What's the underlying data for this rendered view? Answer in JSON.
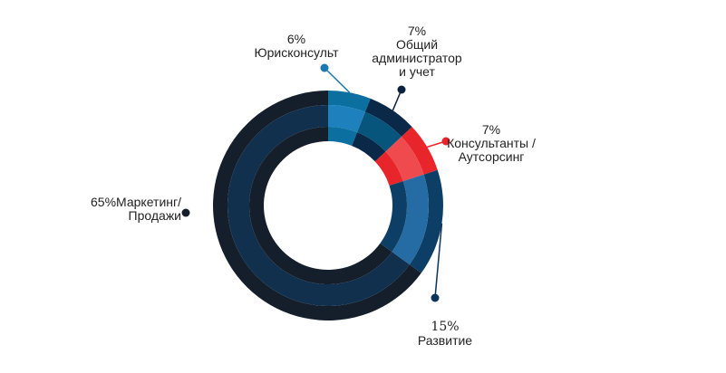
{
  "chart_data": {
    "type": "pie",
    "variant": "donut",
    "start": "top, clockwise",
    "slices": [
      {
        "label": "Юрисконсульт",
        "percent_label": "6%",
        "value": 6,
        "colors": {
          "outer": "#0b6fa0",
          "middle": "#1e80bd",
          "inner": "#0b6fa0"
        },
        "dot_color": "#1a79b0"
      },
      {
        "label": "Общий\nадминистратор\nи учет",
        "percent_label": "7%",
        "value": 7,
        "colors": {
          "outer": "#0a2848",
          "middle": "#07557c",
          "inner": "#0a2848"
        },
        "dot_color": "#0a2240"
      },
      {
        "label": "Консультанты /\nАутсорсинг",
        "percent_label": "7%",
        "value": 7,
        "colors": {
          "outer": "#e8252a",
          "middle": "#ef4b4f",
          "inner": "#e8252a"
        },
        "dot_color": "#e8252a"
      },
      {
        "label": "Развитие",
        "percent_label": "15%",
        "value": 15,
        "colors": {
          "outer": "#0d3f66",
          "middle": "#256ca4",
          "inner": "#0d3f66"
        },
        "dot_color": "#0d3358"
      },
      {
        "label": "Маркетинг/\nПродажи",
        "percent_label": "65%",
        "value": 65,
        "colors": {
          "outer": "#151f2b",
          "middle": "#10304e",
          "inner": "#151f2b"
        },
        "dot_color": "#151f2b"
      }
    ]
  }
}
